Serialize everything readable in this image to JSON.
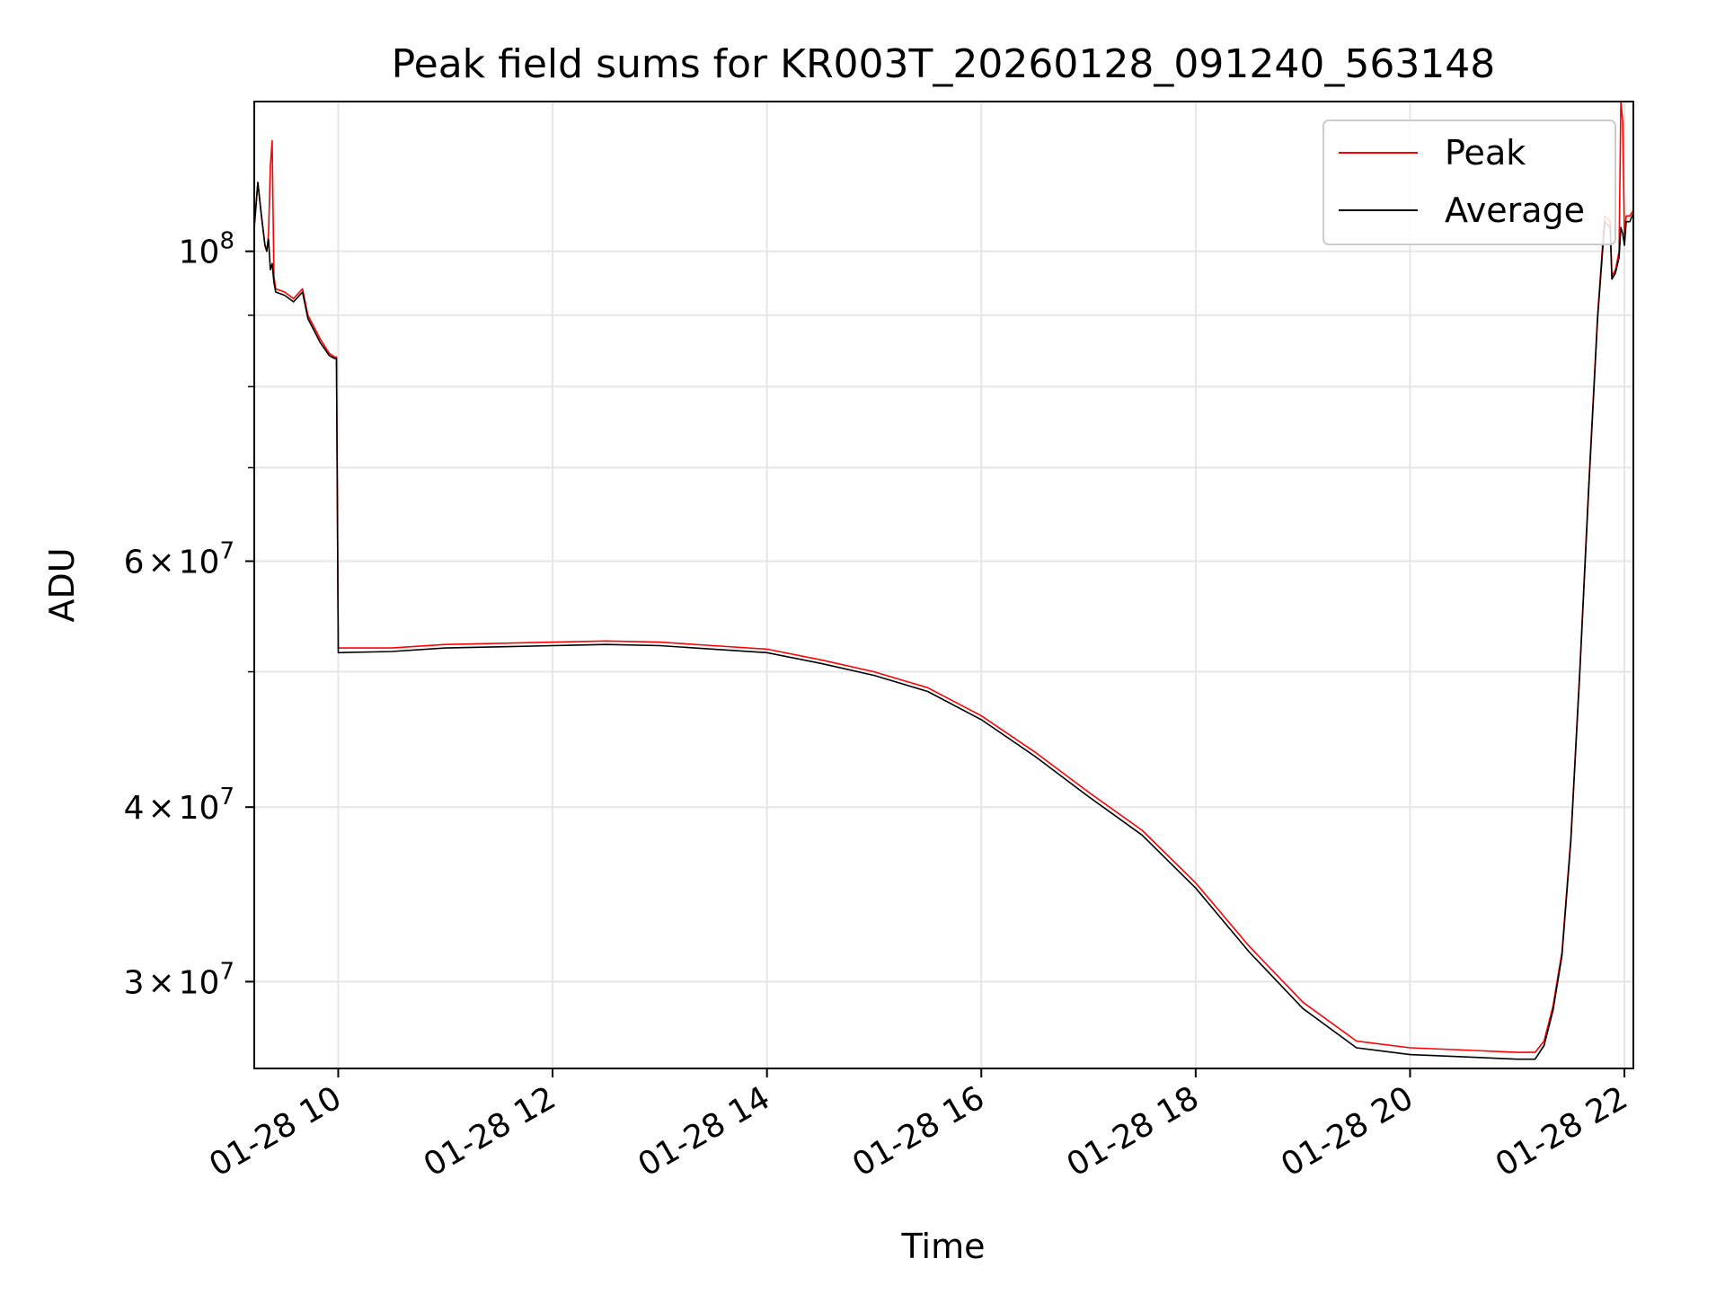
{
  "chart_data": {
    "type": "line",
    "title": "Peak field sums for KR003T_20260128_091240_563148",
    "xlabel": "Time",
    "ylabel": "ADU",
    "yscale": "log",
    "xlim": [
      "01-28 09:13",
      "01-28 22:05"
    ],
    "ylim": [
      26000000,
      128000000
    ],
    "x_ticks": [
      "01-28 10",
      "01-28 12",
      "01-28 14",
      "01-28 16",
      "01-28 18",
      "01-28 20",
      "01-28 22"
    ],
    "y_ticks": [
      {
        "value": 30000000,
        "label_mantissa": "3",
        "label_exponent": "7"
      },
      {
        "value": 40000000,
        "label_mantissa": "4",
        "label_exponent": "7"
      },
      {
        "value": 60000000,
        "label_mantissa": "6",
        "label_exponent": "7"
      },
      {
        "value": 100000000,
        "label_mantissa": "",
        "label_exponent": "8"
      }
    ],
    "y_tick_base": "10",
    "y_tick_times": "×",
    "grid": true,
    "legend": {
      "placement": "top-right"
    },
    "series": [
      {
        "name": "Peak",
        "color": "#ff0000",
        "points": [
          [
            "01-28 09:13",
            104000000
          ],
          [
            "01-28 09:15",
            112000000
          ],
          [
            "01-28 09:17",
            106000000
          ],
          [
            "01-28 09:19",
            101000000
          ],
          [
            "01-28 09:20",
            100000000
          ],
          [
            "01-28 09:21",
            103000000
          ],
          [
            "01-28 09:22",
            115000000
          ],
          [
            "01-28 09:23",
            120000000
          ],
          [
            "01-28 09:24",
            96000000
          ],
          [
            "01-28 09:25",
            94000000
          ],
          [
            "01-28 09:30",
            93500000
          ],
          [
            "01-28 09:35",
            92500000
          ],
          [
            "01-28 09:40",
            94000000
          ],
          [
            "01-28 09:43",
            90000000
          ],
          [
            "01-28 09:50",
            86500000
          ],
          [
            "01-28 09:55",
            84500000
          ],
          [
            "01-28 09:58",
            84000000
          ],
          [
            "01-28 09:59",
            84000000
          ],
          [
            "01-28 10:00",
            52000000
          ],
          [
            "01-28 10:30",
            52000000
          ],
          [
            "01-28 11:00",
            52300000
          ],
          [
            "01-28 11:30",
            52400000
          ],
          [
            "01-28 12:00",
            52500000
          ],
          [
            "01-28 12:30",
            52600000
          ],
          [
            "01-28 13:00",
            52500000
          ],
          [
            "01-28 13:30",
            52200000
          ],
          [
            "01-28 14:00",
            51900000
          ],
          [
            "01-28 14:30",
            51000000
          ],
          [
            "01-28 15:00",
            50000000
          ],
          [
            "01-28 15:30",
            48700000
          ],
          [
            "01-28 16:00",
            46500000
          ],
          [
            "01-28 16:30",
            43800000
          ],
          [
            "01-28 17:00",
            41000000
          ],
          [
            "01-28 17:30",
            38500000
          ],
          [
            "01-28 18:00",
            35300000
          ],
          [
            "01-28 18:30",
            31800000
          ],
          [
            "01-28 19:00",
            29000000
          ],
          [
            "01-28 19:30",
            27200000
          ],
          [
            "01-28 20:00",
            26900000
          ],
          [
            "01-28 20:30",
            26800000
          ],
          [
            "01-28 21:00",
            26700000
          ],
          [
            "01-28 21:10",
            26700000
          ],
          [
            "01-28 21:15",
            27200000
          ],
          [
            "01-28 21:20",
            28800000
          ],
          [
            "01-28 21:25",
            31500000
          ],
          [
            "01-28 21:30",
            38000000
          ],
          [
            "01-28 21:35",
            50000000
          ],
          [
            "01-28 21:40",
            68000000
          ],
          [
            "01-28 21:45",
            90000000
          ],
          [
            "01-28 21:48",
            102000000
          ],
          [
            "01-28 21:49",
            106000000
          ],
          [
            "01-28 21:52",
            105000000
          ],
          [
            "01-28 21:53",
            96000000
          ],
          [
            "01-28 21:55",
            97000000
          ],
          [
            "01-28 21:57",
            100000000
          ],
          [
            "01-28 21:58",
            128000000
          ],
          [
            "01-28 21:59",
            124000000
          ],
          [
            "01-28 22:00",
            102000000
          ],
          [
            "01-28 22:01",
            106000000
          ],
          [
            "01-28 22:03",
            106000000
          ],
          [
            "01-28 22:05",
            107000000
          ]
        ]
      },
      {
        "name": "Average",
        "color": "#000000",
        "points": [
          [
            "01-28 09:13",
            104000000
          ],
          [
            "01-28 09:15",
            112000000
          ],
          [
            "01-28 09:17",
            106000000
          ],
          [
            "01-28 09:19",
            101000000
          ],
          [
            "01-28 09:20",
            100000000
          ],
          [
            "01-28 09:21",
            102000000
          ],
          [
            "01-28 09:22",
            97000000
          ],
          [
            "01-28 09:23",
            98000000
          ],
          [
            "01-28 09:24",
            95000000
          ],
          [
            "01-28 09:25",
            93500000
          ],
          [
            "01-28 09:30",
            93000000
          ],
          [
            "01-28 09:35",
            92000000
          ],
          [
            "01-28 09:40",
            93500000
          ],
          [
            "01-28 09:43",
            89500000
          ],
          [
            "01-28 09:50",
            86000000
          ],
          [
            "01-28 09:55",
            84200000
          ],
          [
            "01-28 09:58",
            83800000
          ],
          [
            "01-28 09:59",
            83800000
          ],
          [
            "01-28 10:00",
            51600000
          ],
          [
            "01-28 10:30",
            51700000
          ],
          [
            "01-28 11:00",
            52000000
          ],
          [
            "01-28 11:30",
            52100000
          ],
          [
            "01-28 12:00",
            52200000
          ],
          [
            "01-28 12:30",
            52300000
          ],
          [
            "01-28 13:00",
            52200000
          ],
          [
            "01-28 13:30",
            51900000
          ],
          [
            "01-28 14:00",
            51600000
          ],
          [
            "01-28 14:30",
            50700000
          ],
          [
            "01-28 15:00",
            49700000
          ],
          [
            "01-28 15:30",
            48400000
          ],
          [
            "01-28 16:00",
            46200000
          ],
          [
            "01-28 16:30",
            43500000
          ],
          [
            "01-28 17:00",
            40700000
          ],
          [
            "01-28 17:30",
            38200000
          ],
          [
            "01-28 18:00",
            35000000
          ],
          [
            "01-28 18:30",
            31500000
          ],
          [
            "01-28 19:00",
            28700000
          ],
          [
            "01-28 19:30",
            26900000
          ],
          [
            "01-28 20:00",
            26600000
          ],
          [
            "01-28 20:30",
            26500000
          ],
          [
            "01-28 21:00",
            26400000
          ],
          [
            "01-28 21:10",
            26400000
          ],
          [
            "01-28 21:15",
            27000000
          ],
          [
            "01-28 21:20",
            28600000
          ],
          [
            "01-28 21:25",
            31300000
          ],
          [
            "01-28 21:30",
            37800000
          ],
          [
            "01-28 21:35",
            49800000
          ],
          [
            "01-28 21:40",
            67500000
          ],
          [
            "01-28 21:45",
            89500000
          ],
          [
            "01-28 21:48",
            101000000
          ],
          [
            "01-28 21:49",
            105000000
          ],
          [
            "01-28 21:52",
            104000000
          ],
          [
            "01-28 21:53",
            95500000
          ],
          [
            "01-28 21:55",
            96500000
          ],
          [
            "01-28 21:57",
            99000000
          ],
          [
            "01-28 21:58",
            104000000
          ],
          [
            "01-28 21:59",
            103000000
          ],
          [
            "01-28 22:00",
            101000000
          ],
          [
            "01-28 22:01",
            105000000
          ],
          [
            "01-28 22:03",
            105000000
          ],
          [
            "01-28 22:05",
            106500000
          ]
        ]
      }
    ]
  }
}
